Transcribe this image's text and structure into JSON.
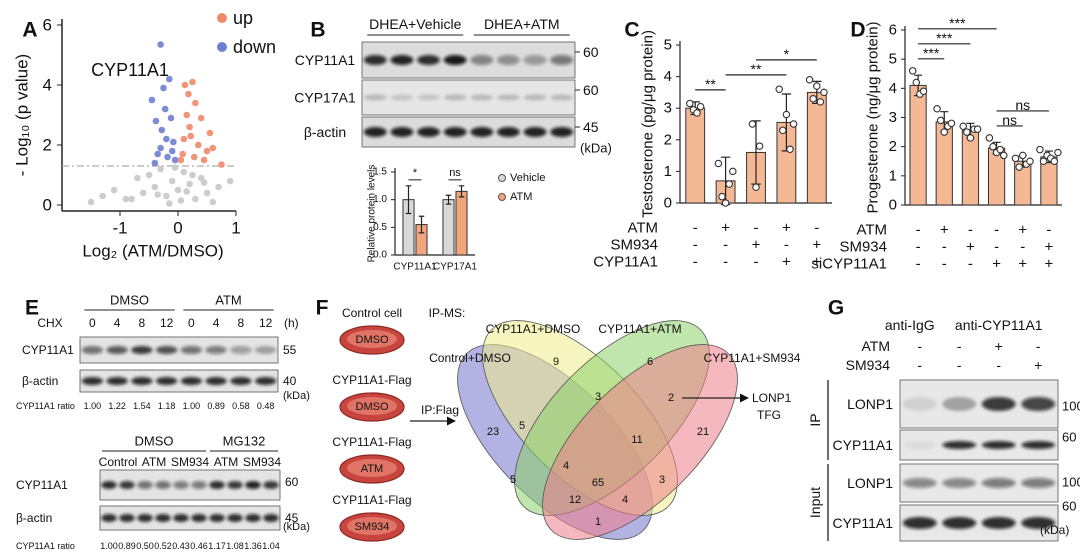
{
  "panel_labels": [
    "A",
    "B",
    "C",
    "D",
    "E",
    "F",
    "G"
  ],
  "chart_data": [
    {
      "type": "scatter",
      "annotation": "CYP11A1",
      "x_label": "Log₂ (ATM/DMSO)",
      "y_label": "- Log₁₀ (p value)",
      "xlim": [
        -2,
        1
      ],
      "xticks": [
        -1,
        0,
        1
      ],
      "ylim": [
        -0.2,
        6.2
      ],
      "yticks": [
        0,
        2,
        4,
        6
      ],
      "threshold": 1.3,
      "legend": "top-right",
      "series": [
        {
          "name": "up",
          "color": "#f08a6a",
          "x": [
            0.05,
            0.1,
            0.15,
            0.2,
            0.25,
            0.3,
            0.35,
            0.4,
            0.5,
            0.55,
            0.08,
            0.18,
            0.28,
            0.45,
            0.6,
            0.12,
            0.22,
            0.75
          ],
          "values": [
            1.5,
            2.2,
            3.0,
            2.6,
            4.1,
            3.4,
            2.0,
            2.9,
            1.8,
            2.4,
            1.7,
            3.7,
            1.6,
            1.5,
            1.9,
            4.0,
            2.3,
            1.35
          ]
        },
        {
          "name": "down",
          "color": "#6d7fd0",
          "x": [
            -0.45,
            -0.38,
            -0.3,
            -0.25,
            -0.2,
            -0.15,
            -0.1,
            -0.05,
            -0.35,
            -0.28,
            -0.22,
            -0.12,
            -0.08,
            -0.4,
            -0.18,
            -0.3
          ],
          "values": [
            3.5,
            2.8,
            5.35,
            3.9,
            2.2,
            4.2,
            1.8,
            1.5,
            1.7,
            2.5,
            3.2,
            2.9,
            2.1,
            1.4,
            1.6,
            1.9
          ]
        },
        {
          "color": "#c8c8c8",
          "x": [
            -1.3,
            -1.1,
            -0.9,
            -0.7,
            -0.6,
            -0.5,
            -0.4,
            -0.3,
            -0.2,
            -0.1,
            0,
            0.1,
            0.2,
            0.3,
            0.4,
            0.5,
            0.6,
            0.7,
            -0.8,
            -0.15,
            0.05,
            0.25,
            -0.35,
            0.45,
            0.9,
            -1.5,
            -0.05,
            0.15
          ],
          "values": [
            0.3,
            0.5,
            0.2,
            0.9,
            0.4,
            1.0,
            0.6,
            1.2,
            0.3,
            0.8,
            0.5,
            1.1,
            0.7,
            0.2,
            0.9,
            0.4,
            0.1,
            0.6,
            0.2,
            0.05,
            0.15,
            1.0,
            0.35,
            0.75,
            0.8,
            0.1,
            1.25,
            0.45
          ]
        }
      ]
    },
    {
      "type": "bar",
      "y_label": "Relative protein levels",
      "categories": [
        "CYP11A1",
        "CYP17A1"
      ],
      "series": [
        {
          "name": "Vehicle",
          "color": "#d9d9d9",
          "values": [
            1.0,
            1.0
          ],
          "errors": [
            0.25,
            0.08
          ]
        },
        {
          "name": "ATM",
          "color": "#f0a57c",
          "values": [
            0.55,
            1.15
          ],
          "errors": [
            0.15,
            0.1
          ]
        }
      ],
      "ylim": [
        0,
        1.5
      ],
      "yticks": [
        {
          "value": 0,
          "label": "0.0"
        },
        {
          "value": 0.5,
          "label": "0.5"
        },
        {
          "value": 1,
          "label": "1.0"
        },
        {
          "value": 1.5,
          "label": "1.5"
        }
      ],
      "annotations": [
        "*",
        "ns"
      ],
      "legend": "right"
    },
    {
      "type": "bar",
      "y_label": "Testosterone (pg/μg protein)",
      "color": "#f5b895",
      "values": [
        3.0,
        0.7,
        1.6,
        2.55,
        3.5
      ],
      "errors": [
        0.2,
        0.75,
        1.0,
        0.9,
        0.35
      ],
      "points": [
        [
          3.15,
          2.95,
          2.85,
          3.05
        ],
        [
          1.25,
          0.2,
          0.0,
          0.6,
          1.0
        ],
        [
          2.5,
          0.5,
          1.8
        ],
        [
          3.6,
          2.3,
          2.8,
          1.7,
          2.5
        ],
        [
          3.9,
          3.3,
          3.7,
          3.2,
          3.5
        ]
      ],
      "ylim": [
        0,
        5
      ],
      "yticks": [
        0,
        1,
        2,
        3,
        4,
        5
      ],
      "conditions": [
        {
          "label": "ATM",
          "signs": [
            "-",
            "+",
            "-",
            "+",
            "-"
          ]
        },
        {
          "label": "SM934",
          "signs": [
            "-",
            "-",
            "+",
            "-",
            "+"
          ]
        },
        {
          "label": "CYP11A1",
          "signs": [
            "-",
            "-",
            "-",
            "+",
            "+"
          ]
        }
      ],
      "comparisons": [
        {
          "label": "**",
          "pair": [
            0,
            1
          ]
        },
        {
          "label": "**",
          "pair": [
            1,
            3
          ]
        },
        {
          "label": "*",
          "pair": [
            2,
            4
          ]
        }
      ]
    },
    {
      "type": "bar",
      "y_label": "Progesterone (ng/μg protein)",
      "color": "#f5b895",
      "values": [
        4.1,
        2.85,
        2.55,
        1.95,
        1.5,
        1.65
      ],
      "errors": [
        0.35,
        0.35,
        0.25,
        0.2,
        0.2,
        0.2
      ],
      "points": [
        [
          4.6,
          4.2,
          3.8,
          3.9
        ],
        [
          3.3,
          2.9,
          2.5,
          2.7,
          2.8
        ],
        [
          2.7,
          2.5,
          2.3,
          2.6,
          2.6
        ],
        [
          2.3,
          2.0,
          1.8,
          1.9,
          1.7
        ],
        [
          1.6,
          1.3,
          1.7,
          1.4,
          1.5
        ],
        [
          1.9,
          1.5,
          1.7,
          1.6,
          1.5,
          1.8
        ]
      ],
      "ylim": [
        0,
        6
      ],
      "yticks": [
        0,
        1,
        2,
        3,
        4,
        5,
        6
      ],
      "conditions": [
        {
          "label": "ATM",
          "signs": [
            "-",
            "+",
            "-",
            "-",
            "+",
            "-"
          ]
        },
        {
          "label": "SM934",
          "signs": [
            "-",
            "-",
            "+",
            "-",
            "-",
            "+"
          ]
        },
        {
          "label": "siCYP11A1",
          "signs": [
            "-",
            "-",
            "-",
            "+",
            "+",
            "+"
          ]
        }
      ],
      "comparisons": [
        {
          "label": "ns",
          "pair": [
            3,
            4
          ]
        },
        {
          "label": "ns",
          "pair": [
            3,
            5
          ]
        },
        {
          "label": "***",
          "pair": [
            0,
            1
          ]
        },
        {
          "label": "***",
          "pair": [
            0,
            2
          ]
        },
        {
          "label": "***",
          "pair": [
            0,
            3
          ]
        }
      ]
    }
  ],
  "panel_b_blot": {
    "groups": [
      "DHEA+Vehicle",
      "DHEA+ATM"
    ],
    "rows": [
      "CYP11A1",
      "CYP17A1",
      "β-actin"
    ],
    "markers": [
      "60",
      "60",
      "45"
    ],
    "unit": "(kDa)"
  },
  "panel_e": {
    "top": {
      "groups": [
        "DMSO",
        "ATM"
      ],
      "treatment": "CHX",
      "times": [
        "0",
        "4",
        "8",
        "12",
        "0",
        "4",
        "8",
        "12"
      ],
      "time_unit": "(h)",
      "rows": [
        "CYP11A1",
        "β-actin"
      ],
      "markers": [
        "55",
        "40"
      ],
      "unit": "(kDa)",
      "ratio_label": "CYP11A1 ratio",
      "ratios": [
        "1.00",
        "1.22",
        "1.54",
        "1.18",
        "1.00",
        "0.89",
        "0.58",
        "0.48"
      ]
    },
    "bottom": {
      "groups": [
        "DMSO",
        "MG132"
      ],
      "lanes": [
        "Control",
        "ATM",
        "SM934",
        "ATM",
        "SM934"
      ],
      "rows": [
        "CYP11A1",
        "β-actin"
      ],
      "markers": [
        "60",
        "45"
      ],
      "unit": "(kDa)",
      "ratio_label": "CYP11A1 ratio",
      "ratios": [
        "1.00",
        "0.89",
        "0.50",
        "0.52",
        "0.43",
        "0.46",
        "1.17",
        "1.08",
        "1.36",
        "1.04"
      ]
    }
  },
  "panel_f": {
    "samples": [
      {
        "label": "Control cell",
        "dish": "DMSO"
      },
      {
        "label": "CYP11A1-Flag",
        "dish": "DMSO"
      },
      {
        "label": "CYP11A1-Flag",
        "dish": "ATM"
      },
      {
        "label": "CYP11A1-Flag",
        "dish": "SM934"
      }
    ],
    "method": "IP-MS:",
    "step": "IP:Flag",
    "sets": [
      "Control+DMSO",
      "CYP11A1+DMSO",
      "CYP11A1+ATM",
      "CYP11A1+SM934"
    ],
    "regions": [
      "23",
      "9",
      "6",
      "21",
      "5",
      "3",
      "2",
      "4",
      "11",
      "5",
      "65",
      "3",
      "12",
      "4",
      "1"
    ],
    "hits": [
      "LONP1",
      "TFG"
    ]
  },
  "panel_g": {
    "antibodies": [
      "anti-IgG",
      "anti-CYP11A1"
    ],
    "conditions": [
      {
        "label": "ATM",
        "signs": [
          "-",
          "-",
          "+",
          "-"
        ]
      },
      {
        "label": "SM934",
        "signs": [
          "-",
          "-",
          "-",
          "+"
        ]
      }
    ],
    "sections": [
      {
        "label": "IP",
        "rows": [
          "LONP1",
          "CYP11A1"
        ],
        "markers": [
          "100",
          "60"
        ]
      },
      {
        "label": "Input",
        "rows": [
          "LONP1",
          "CYP11A1"
        ],
        "markers": [
          "100",
          "60"
        ]
      }
    ],
    "unit": "(kDa)"
  }
}
